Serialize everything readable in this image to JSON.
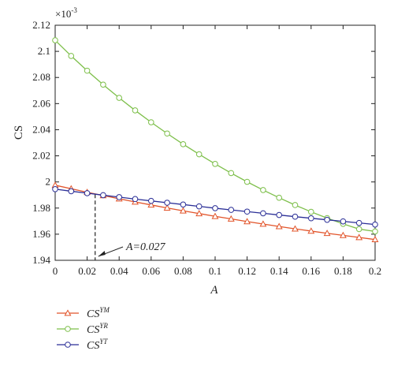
{
  "chart_data": {
    "type": "line",
    "xlabel": "A",
    "ylabel": "CS",
    "y_multiplier": "×10",
    "y_multiplier_exp": "-3",
    "xlim": [
      0,
      0.2
    ],
    "ylim": [
      1.94,
      2.12
    ],
    "x_ticks": [
      0,
      0.02,
      0.04,
      0.06,
      0.08,
      0.1,
      0.12,
      0.14,
      0.16,
      0.18,
      0.2
    ],
    "x_tick_labels": [
      "0",
      "0.02",
      "0.04",
      "0.06",
      "0.08",
      "0.1",
      "0.12",
      "0.14",
      "0.16",
      "0.18",
      "0.2"
    ],
    "y_ticks": [
      1.94,
      1.96,
      1.98,
      2.0,
      2.02,
      2.04,
      2.06,
      2.08,
      2.1,
      2.12
    ],
    "y_tick_labels": [
      "1.94",
      "1.96",
      "1.98",
      "2",
      "2.02",
      "2.04",
      "2.06",
      "2.08",
      "2.1",
      "2.12"
    ],
    "x": [
      0,
      0.01,
      0.02,
      0.03,
      0.04,
      0.05,
      0.06,
      0.07,
      0.08,
      0.09,
      0.1,
      0.11,
      0.12,
      0.13,
      0.14,
      0.15,
      0.16,
      0.17,
      0.18,
      0.19,
      0.2
    ],
    "series": [
      {
        "name": "CS",
        "name_sup": "YM",
        "marker": "triangle",
        "color": "#e2542a",
        "values": [
          1.9975,
          1.9948,
          1.9921,
          1.9896,
          1.9871,
          1.9847,
          1.9824,
          1.9801,
          1.9779,
          1.9758,
          1.9737,
          1.9717,
          1.9697,
          1.9678,
          1.9659,
          1.9641,
          1.9624,
          1.9607,
          1.9591,
          1.9575,
          1.9559
        ]
      },
      {
        "name": "CS",
        "name_sup": "YR",
        "marker": "circle",
        "color": "#7dbf4a",
        "values": [
          2.1085,
          2.0965,
          2.0852,
          2.0745,
          2.0644,
          2.0548,
          2.0457,
          2.0371,
          2.0289,
          2.0212,
          2.0138,
          2.0068,
          2.0001,
          1.9938,
          1.9879,
          1.9823,
          1.9771,
          1.9723,
          1.9679,
          1.9639,
          1.9621
        ]
      },
      {
        "name": "CS",
        "name_sup": "YT",
        "marker": "circle",
        "color": "#2b2f97",
        "values": [
          1.9945,
          1.9929,
          1.9914,
          1.9899,
          1.9884,
          1.9869,
          1.9855,
          1.9841,
          1.9827,
          1.9813,
          1.9799,
          1.9786,
          1.9773,
          1.976,
          1.9747,
          1.9734,
          1.9722,
          1.971,
          1.9698,
          1.9686,
          1.9674
        ]
      }
    ],
    "annotation": {
      "text": "A=0.027",
      "x": 0.027,
      "y": 1.9906
    },
    "grid": false,
    "legend_position": "bottom-left"
  }
}
